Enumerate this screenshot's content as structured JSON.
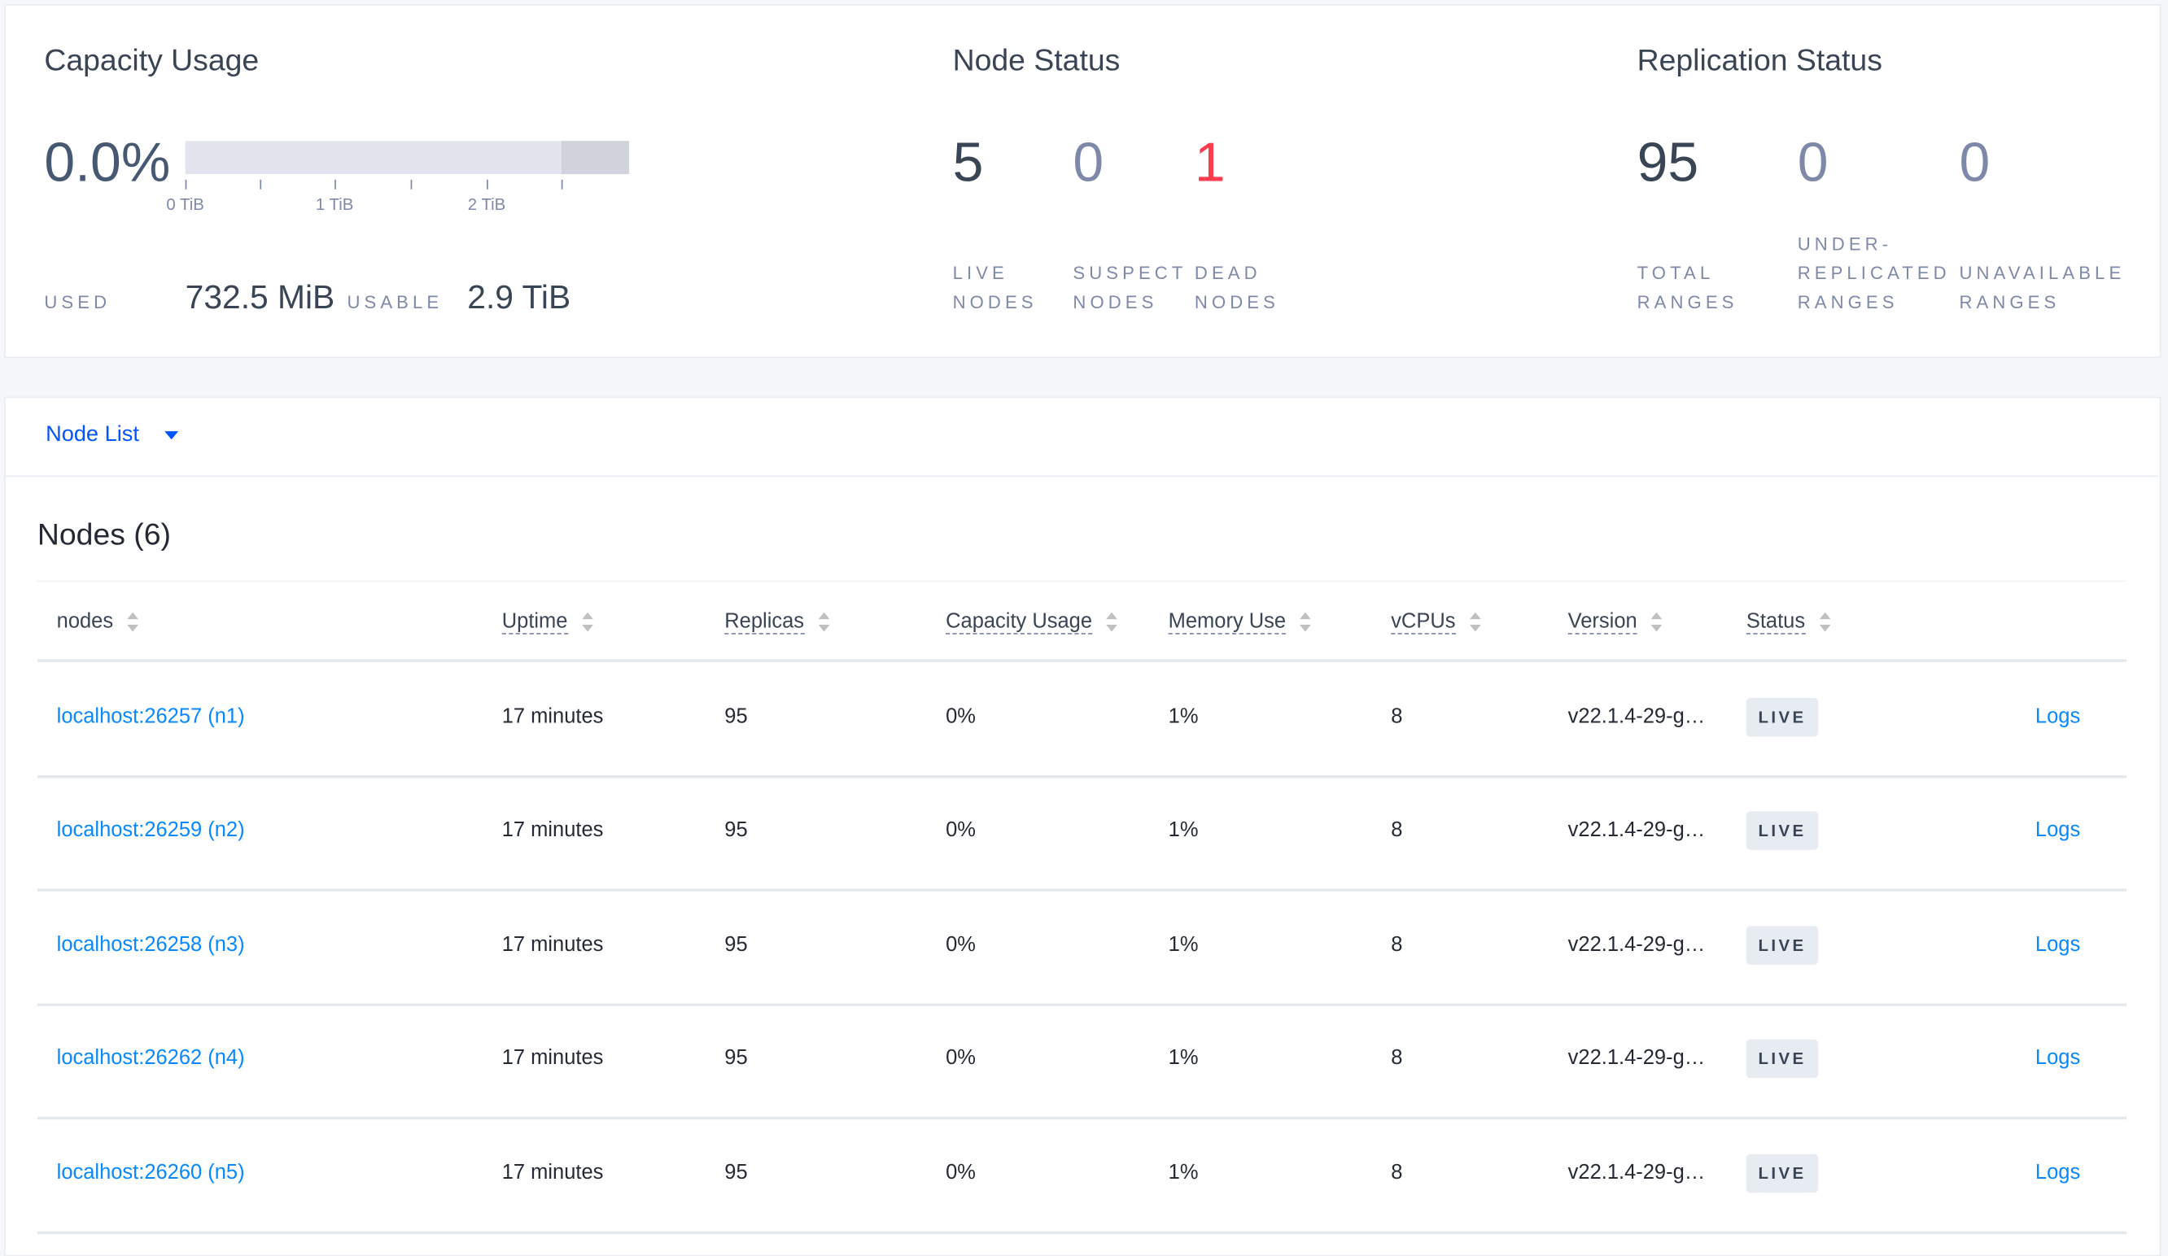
{
  "capacity": {
    "title": "Capacity Usage",
    "percent": "0.0%",
    "used_fraction": 0.0,
    "ticks": [
      "0 TiB",
      "1 TiB",
      "2 TiB"
    ],
    "used_label": "USED",
    "used_value": "732.5 MiB",
    "usable_label": "USABLE",
    "usable_value": "2.9 TiB"
  },
  "node_status": {
    "title": "Node Status",
    "stats": [
      {
        "value": "5",
        "line1": "LIVE",
        "line2": "NODES",
        "color": "#394455"
      },
      {
        "value": "0",
        "line1": "SUSPECT",
        "line2": "NODES",
        "color": "#7e89a9"
      },
      {
        "value": "1",
        "line1": "DEAD",
        "line2": "NODES",
        "color": "#ff3b4e"
      }
    ]
  },
  "replication_status": {
    "title": "Replication Status",
    "stats": [
      {
        "value": "95",
        "line0": "",
        "line1": "TOTAL",
        "line2": "RANGES",
        "color": "#394455"
      },
      {
        "value": "0",
        "line0": "UNDER-",
        "line1": "REPLICATED",
        "line2": "RANGES",
        "color": "#7e89a9"
      },
      {
        "value": "0",
        "line0": "",
        "line1": "UNAVAILABLE",
        "line2": "RANGES",
        "color": "#7e89a9"
      }
    ]
  },
  "node_list": {
    "dropdown_label": "Node List",
    "section_title": "Nodes (6)",
    "columns": [
      "nodes",
      "Uptime",
      "Replicas",
      "Capacity Usage",
      "Memory Use",
      "vCPUs",
      "Version",
      "Status"
    ],
    "rows": [
      {
        "node": "localhost:26257 (n1)",
        "uptime": "17 minutes",
        "replicas": "95",
        "capacity": "0%",
        "memory": "1%",
        "vcpus": "8",
        "version": "v22.1.4-29-g…",
        "status": "LIVE",
        "logs": "Logs"
      },
      {
        "node": "localhost:26259 (n2)",
        "uptime": "17 minutes",
        "replicas": "95",
        "capacity": "0%",
        "memory": "1%",
        "vcpus": "8",
        "version": "v22.1.4-29-g…",
        "status": "LIVE",
        "logs": "Logs"
      },
      {
        "node": "localhost:26258 (n3)",
        "uptime": "17 minutes",
        "replicas": "95",
        "capacity": "0%",
        "memory": "1%",
        "vcpus": "8",
        "version": "v22.1.4-29-g…",
        "status": "LIVE",
        "logs": "Logs"
      },
      {
        "node": "localhost:26262 (n4)",
        "uptime": "17 minutes",
        "replicas": "95",
        "capacity": "0%",
        "memory": "1%",
        "vcpus": "8",
        "version": "v22.1.4-29-g…",
        "status": "LIVE",
        "logs": "Logs"
      },
      {
        "node": "localhost:26260 (n5)",
        "uptime": "17 minutes",
        "replicas": "95",
        "capacity": "0%",
        "memory": "1%",
        "vcpus": "8",
        "version": "v22.1.4-29-g…",
        "status": "LIVE",
        "logs": "Logs"
      }
    ]
  },
  "colors": {
    "link": "#0788ff",
    "accent": "#0055ff",
    "dead": "#ff3b4e"
  }
}
